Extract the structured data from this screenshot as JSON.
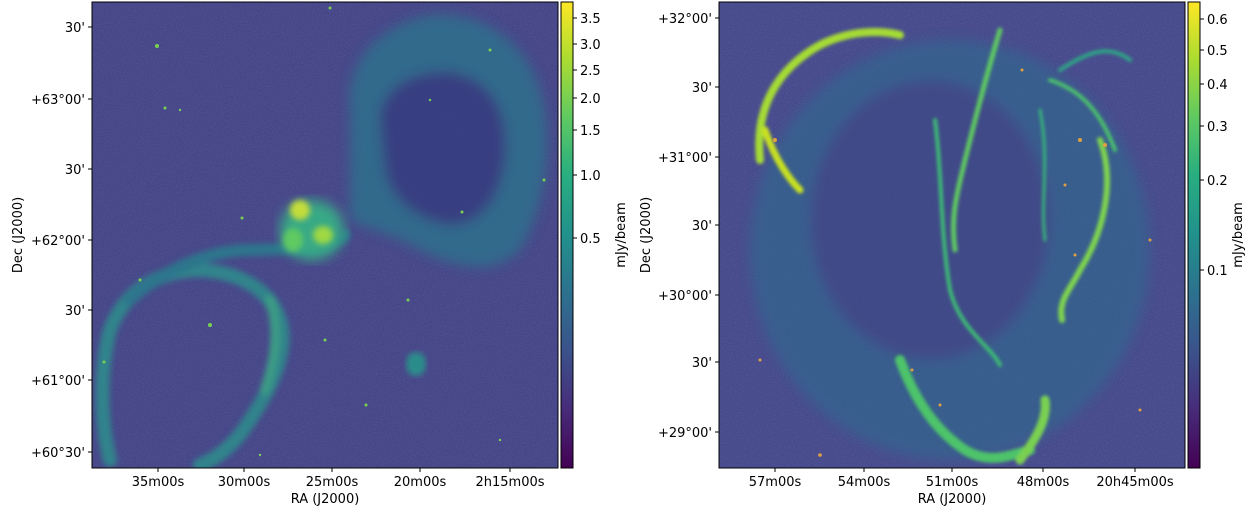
{
  "panels": [
    {
      "id": "left",
      "xlabel": "RA (J2000)",
      "ylabel": "Dec (J2000)",
      "x_ticks": [
        "35m00s",
        "30m00s",
        "25m00s",
        "20m00s",
        "2h15m00s"
      ],
      "y_ticks": [
        "30'",
        "+63°00'",
        "30'",
        "+62°00'",
        "30'",
        "+61°00'",
        "+60°30'"
      ],
      "colorbar": {
        "label": "mJy/beam",
        "ticks": [
          "3.5",
          "3.0",
          "2.5",
          "2.0",
          "1.5",
          "1.0",
          "0.5"
        ],
        "scale": "sqrt",
        "range": [
          0.0,
          3.8
        ]
      }
    },
    {
      "id": "right",
      "xlabel": "RA (J2000)",
      "ylabel": "Dec (J2000)",
      "x_ticks": [
        "57m00s",
        "54m00s",
        "51m00s",
        "48m00s",
        "20h45m00s"
      ],
      "y_ticks": [
        "+32°00'",
        "30'",
        "+31°00'",
        "30'",
        "+30°00'",
        "30'",
        "+29°00'"
      ],
      "colorbar": {
        "label": "mJy/beam",
        "ticks": [
          "0.6",
          "0.5",
          "0.4",
          "0.3",
          "0.2",
          "0.1"
        ],
        "scale": "log",
        "range": [
          0.0,
          0.65
        ]
      }
    }
  ],
  "colors": {
    "colormap": "viridis",
    "viridis_low": "#440154",
    "viridis_mid": "#21918c",
    "viridis_high": "#fde725"
  }
}
